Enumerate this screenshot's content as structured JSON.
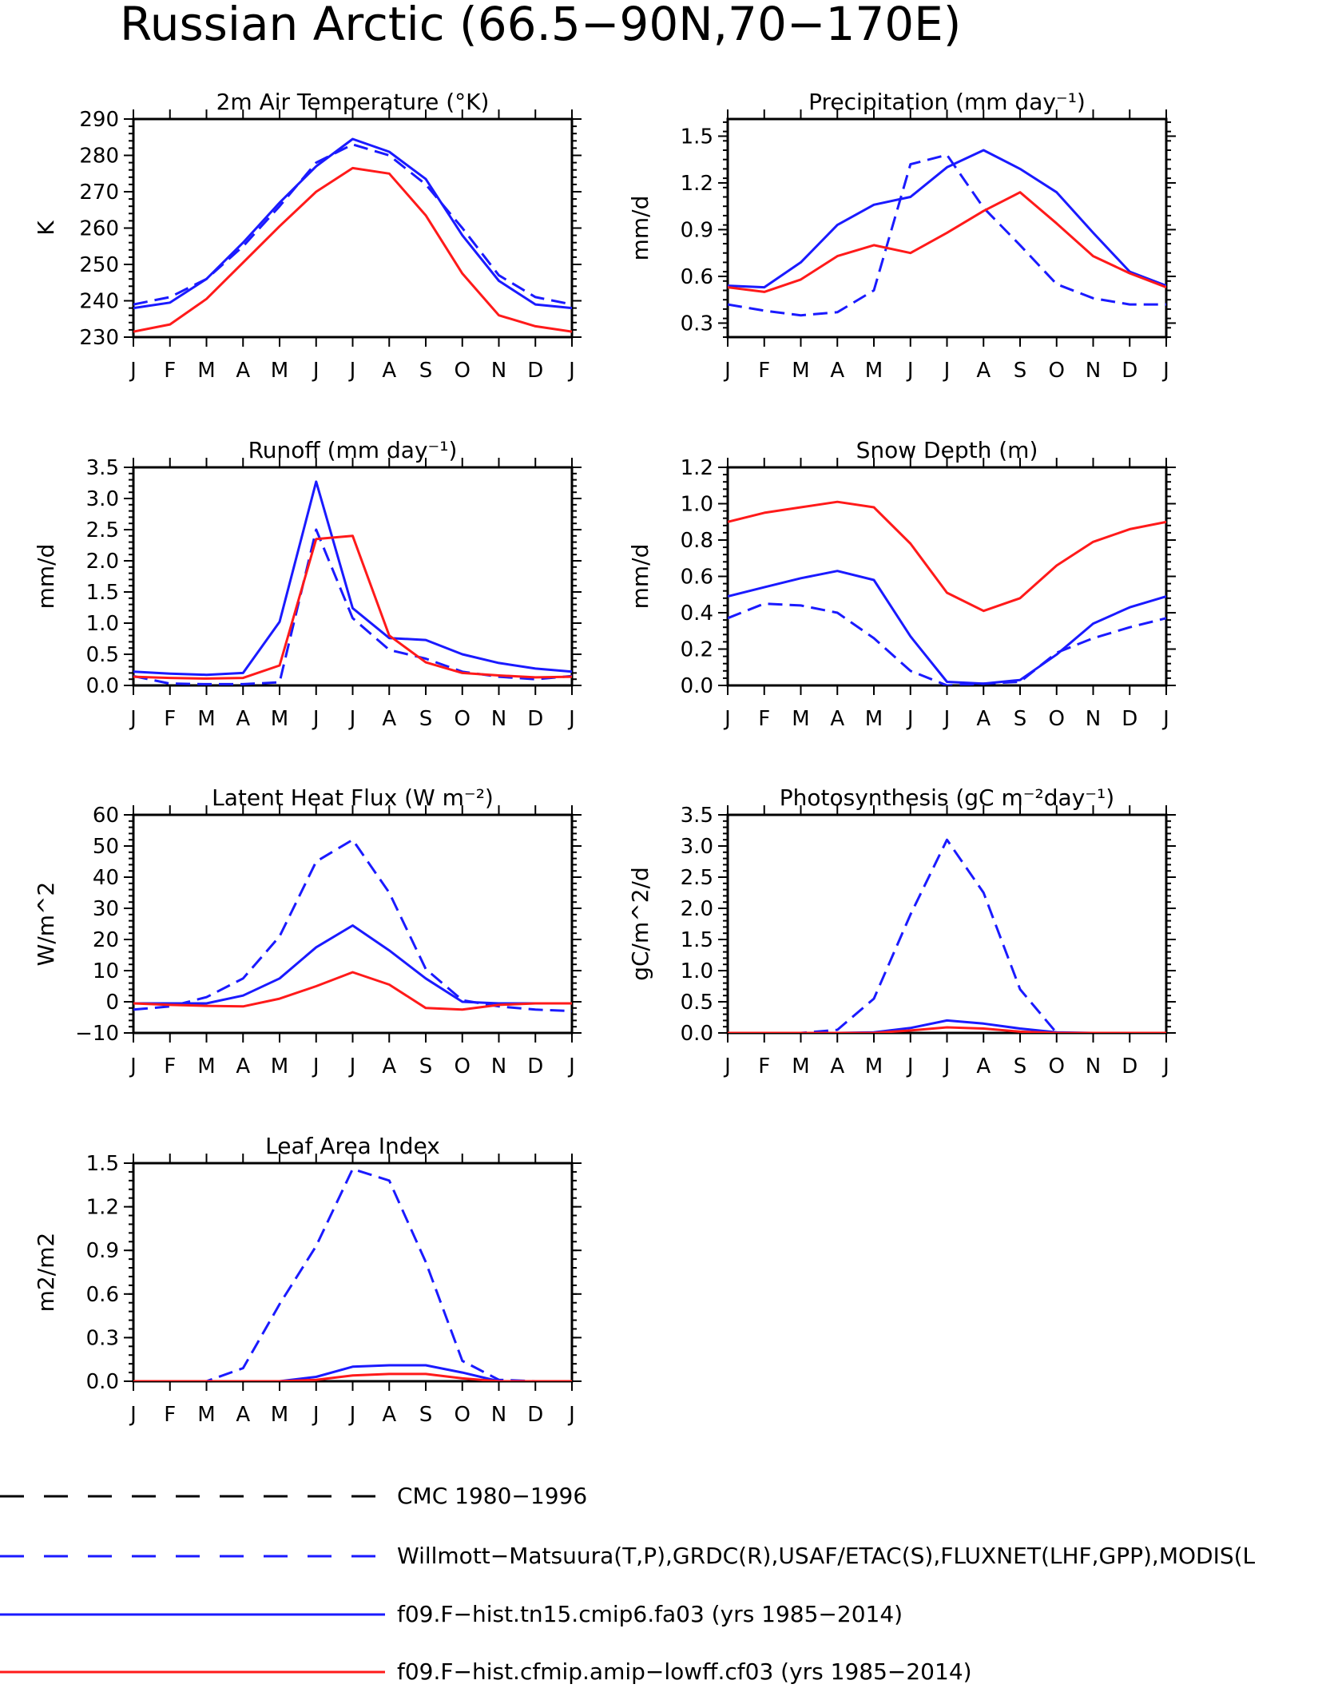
{
  "figure": {
    "title": "Russian Arctic (66.5−90N,70−170E)"
  },
  "colors": {
    "observed": "#1a1aff",
    "model_blue": "#1a1aff",
    "model_red": "#ff1a1a",
    "cmc": "#000000"
  },
  "legend": [
    {
      "label": "CMC 1980−1996",
      "color": "#000000",
      "dash": true
    },
    {
      "label": "Willmott−Matsuura(T,P),GRDC(R),USAF/ETAC(S),FLUXNET(LHF,GPP),MODIS(L",
      "color": "#1a1aff",
      "dash": true
    },
    {
      "label": "f09.F−hist.tn15.cmip6.fa03 (yrs 1985−2014)",
      "color": "#1a1aff",
      "dash": false
    },
    {
      "label": "f09.F−hist.cfmip.amip−lowff.cf03 (yrs 1985−2014)",
      "color": "#ff1a1a",
      "dash": false
    }
  ],
  "chart_data": [
    {
      "type": "line",
      "title": "2m Air Temperature (°K)",
      "ylabel": "K",
      "categories": [
        "J",
        "F",
        "M",
        "A",
        "M",
        "J",
        "J",
        "A",
        "S",
        "O",
        "N",
        "D",
        "J"
      ],
      "ylim": [
        230,
        290
      ],
      "yticks": [
        230,
        240,
        250,
        260,
        270,
        280,
        290
      ],
      "ytick_labels": [
        "230",
        "240",
        "250",
        "260",
        "270",
        "280",
        "290"
      ],
      "series": [
        {
          "values": [
            239,
            241,
            246,
            255,
            266,
            278,
            283,
            280,
            272,
            260,
            247,
            241,
            239
          ],
          "color": "#1a1aff",
          "dash": true
        },
        {
          "values": [
            238,
            239.5,
            246,
            256,
            267,
            277,
            284.5,
            281,
            273.5,
            258,
            245.5,
            239,
            238
          ],
          "color": "#1a1aff",
          "dash": false
        },
        {
          "values": [
            231.5,
            233.5,
            240.5,
            250.5,
            260.5,
            270,
            276.5,
            275,
            263.5,
            247.5,
            236,
            233,
            231.5
          ],
          "color": "#ff1a1a",
          "dash": false
        }
      ]
    },
    {
      "type": "line",
      "title": "Precipitation (mm day⁻¹)",
      "ylabel": "mm/d",
      "categories": [
        "J",
        "F",
        "M",
        "A",
        "M",
        "J",
        "J",
        "A",
        "S",
        "O",
        "N",
        "D",
        "J"
      ],
      "ylim": [
        0.21,
        1.61
      ],
      "yticks": [
        0.3,
        0.6,
        0.9,
        1.2,
        1.5
      ],
      "ytick_labels": [
        "0.3",
        "0.6",
        "0.9",
        "1.2",
        "1.5"
      ],
      "series": [
        {
          "values": [
            0.42,
            0.38,
            0.35,
            0.37,
            0.51,
            1.32,
            1.38,
            1.04,
            0.8,
            0.55,
            0.46,
            0.42,
            0.42
          ],
          "color": "#1a1aff",
          "dash": true
        },
        {
          "values": [
            0.54,
            0.53,
            0.69,
            0.93,
            1.06,
            1.11,
            1.3,
            1.41,
            1.29,
            1.14,
            0.88,
            0.63,
            0.54
          ],
          "color": "#1a1aff",
          "dash": false
        },
        {
          "values": [
            0.53,
            0.5,
            0.58,
            0.73,
            0.8,
            0.75,
            0.88,
            1.02,
            1.14,
            0.94,
            0.73,
            0.62,
            0.53
          ],
          "color": "#ff1a1a",
          "dash": false
        }
      ]
    },
    {
      "type": "line",
      "title": "Runoff (mm day⁻¹)",
      "ylabel": "mm/d",
      "categories": [
        "J",
        "F",
        "M",
        "A",
        "M",
        "J",
        "J",
        "A",
        "S",
        "O",
        "N",
        "D",
        "J"
      ],
      "ylim": [
        0,
        3.5
      ],
      "yticks": [
        0,
        0.5,
        1,
        1.5,
        2,
        2.5,
        3,
        3.5
      ],
      "ytick_labels": [
        "0.0",
        "0.5",
        "1.0",
        "1.5",
        "2.0",
        "2.5",
        "3.0",
        "3.5"
      ],
      "series": [
        {
          "values": [
            0.15,
            0.03,
            0.02,
            0.02,
            0.05,
            2.5,
            1.08,
            0.57,
            0.43,
            0.22,
            0.14,
            0.1,
            0.15
          ],
          "color": "#1a1aff",
          "dash": true
        },
        {
          "values": [
            0.22,
            0.19,
            0.17,
            0.2,
            1.02,
            3.27,
            1.24,
            0.76,
            0.73,
            0.5,
            0.36,
            0.27,
            0.22
          ],
          "color": "#1a1aff",
          "dash": false
        },
        {
          "values": [
            0.14,
            0.12,
            0.11,
            0.12,
            0.32,
            2.35,
            2.4,
            0.8,
            0.37,
            0.2,
            0.16,
            0.13,
            0.14
          ],
          "color": "#ff1a1a",
          "dash": false
        }
      ]
    },
    {
      "type": "line",
      "title": "Snow Depth (m)",
      "ylabel": "mm/d",
      "categories": [
        "J",
        "F",
        "M",
        "A",
        "M",
        "J",
        "J",
        "A",
        "S",
        "O",
        "N",
        "D",
        "J"
      ],
      "ylim": [
        0,
        1.2
      ],
      "yticks": [
        0,
        0.2,
        0.4,
        0.6,
        0.8,
        1.0,
        1.2
      ],
      "ytick_labels": [
        "0.0",
        "0.2",
        "0.4",
        "0.6",
        "0.8",
        "1.0",
        "1.2"
      ],
      "series": [
        {
          "values": [
            0,
            0,
            0,
            0,
            0,
            0,
            0,
            0,
            0,
            0,
            0,
            0,
            0
          ],
          "color": "#000000",
          "dash": true
        },
        {
          "values": [
            0.37,
            0.45,
            0.44,
            0.4,
            0.26,
            0.08,
            0.0,
            0.01,
            0.02,
            0.18,
            0.26,
            0.32,
            0.37
          ],
          "color": "#1a1aff",
          "dash": true
        },
        {
          "values": [
            0.49,
            0.54,
            0.59,
            0.63,
            0.58,
            0.27,
            0.02,
            0.01,
            0.03,
            0.17,
            0.34,
            0.43,
            0.49
          ],
          "color": "#1a1aff",
          "dash": false
        },
        {
          "values": [
            0.9,
            0.95,
            0.98,
            1.01,
            0.98,
            0.78,
            0.51,
            0.41,
            0.48,
            0.66,
            0.79,
            0.86,
            0.9
          ],
          "color": "#ff1a1a",
          "dash": false
        }
      ]
    },
    {
      "type": "line",
      "title": "Latent Heat Flux (W m⁻²)",
      "ylabel": "W/m^2",
      "categories": [
        "J",
        "F",
        "M",
        "A",
        "M",
        "J",
        "J",
        "A",
        "S",
        "O",
        "N",
        "D",
        "J"
      ],
      "ylim": [
        -10,
        60
      ],
      "yticks": [
        -10,
        0,
        10,
        20,
        30,
        40,
        50,
        60
      ],
      "ytick_labels": [
        "−10",
        "0",
        "10",
        "20",
        "30",
        "40",
        "50",
        "60"
      ],
      "series": [
        {
          "values": [
            -2.5,
            -1.5,
            1.5,
            7.5,
            21,
            45,
            52,
            35,
            10.5,
            0.5,
            -1.5,
            -2.5,
            -3
          ],
          "color": "#1a1aff",
          "dash": true
        },
        {
          "values": [
            -0.5,
            -0.5,
            -0.5,
            2,
            7.5,
            17.5,
            24.5,
            16.5,
            7.5,
            0,
            -0.5,
            -0.5,
            -0.5
          ],
          "color": "#1a1aff",
          "dash": false
        },
        {
          "values": [
            -0.5,
            -1,
            -1.3,
            -1.5,
            1,
            5,
            9.5,
            5.5,
            -2,
            -2.5,
            -1,
            -0.5,
            -0.5
          ],
          "color": "#ff1a1a",
          "dash": false
        }
      ]
    },
    {
      "type": "line",
      "title": "Photosynthesis (gC m⁻²day⁻¹)",
      "ylabel": "gC/m^2/d",
      "categories": [
        "J",
        "F",
        "M",
        "A",
        "M",
        "J",
        "J",
        "A",
        "S",
        "O",
        "N",
        "D",
        "J"
      ],
      "ylim": [
        0,
        3.5
      ],
      "yticks": [
        0,
        0.5,
        1,
        1.5,
        2,
        2.5,
        3,
        3.5
      ],
      "ytick_labels": [
        "0.0",
        "0.5",
        "1.0",
        "1.5",
        "2.0",
        "2.5",
        "3.0",
        "3.5"
      ],
      "series": [
        {
          "values": [
            0,
            0,
            0,
            0.05,
            0.55,
            1.9,
            3.1,
            2.25,
            0.7,
            0,
            0,
            0,
            0
          ],
          "color": "#1a1aff",
          "dash": true
        },
        {
          "values": [
            0,
            0,
            0,
            0,
            0.01,
            0.08,
            0.2,
            0.15,
            0.07,
            0.01,
            0,
            0,
            0
          ],
          "color": "#1a1aff",
          "dash": false
        },
        {
          "values": [
            0,
            0,
            0,
            0,
            0,
            0.04,
            0.09,
            0.07,
            0.02,
            0,
            0,
            0,
            0
          ],
          "color": "#ff1a1a",
          "dash": false
        }
      ]
    },
    {
      "type": "line",
      "title": "Leaf Area Index",
      "ylabel": "m2/m2",
      "categories": [
        "J",
        "F",
        "M",
        "A",
        "M",
        "J",
        "J",
        "A",
        "S",
        "O",
        "N",
        "D",
        "J"
      ],
      "ylim": [
        0,
        1.5
      ],
      "yticks": [
        0,
        0.3,
        0.6,
        0.9,
        1.2,
        1.5
      ],
      "ytick_labels": [
        "0.0",
        "0.3",
        "0.6",
        "0.9",
        "1.2",
        "1.5"
      ],
      "series": [
        {
          "values": [
            0,
            0,
            0,
            0.09,
            0.53,
            0.93,
            1.46,
            1.38,
            0.82,
            0.14,
            0.01,
            0,
            0
          ],
          "color": "#1a1aff",
          "dash": true
        },
        {
          "values": [
            0,
            0,
            0,
            0,
            0,
            0.03,
            0.1,
            0.11,
            0.11,
            0.06,
            0,
            0,
            0
          ],
          "color": "#1a1aff",
          "dash": false
        },
        {
          "values": [
            0,
            0,
            0,
            0,
            0,
            0.01,
            0.04,
            0.05,
            0.05,
            0.02,
            0,
            0,
            0
          ],
          "color": "#ff1a1a",
          "dash": false
        }
      ]
    }
  ]
}
